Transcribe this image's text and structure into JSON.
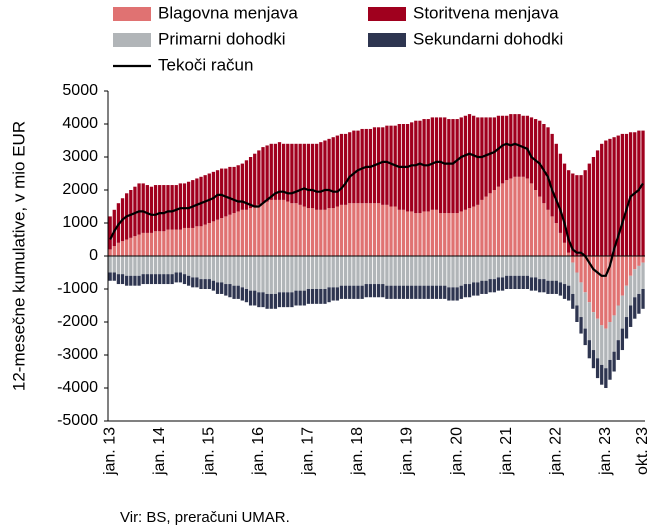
{
  "chart_data": {
    "type": "bar",
    "stacked": true,
    "y_label": "12-mesečne kumulative, v mio EUR",
    "source": "Vir: BS, preračuni UMAR.",
    "ylim": [
      -5000,
      5000
    ],
    "yticks": [
      5000,
      4000,
      3000,
      2000,
      1000,
      0,
      -1000,
      -2000,
      -3000,
      -4000,
      -5000
    ],
    "categories": [
      "jan. 13",
      null,
      null,
      null,
      null,
      null,
      null,
      null,
      null,
      null,
      null,
      null,
      "jan. 14",
      null,
      null,
      null,
      null,
      null,
      null,
      null,
      null,
      null,
      null,
      null,
      "jan. 15",
      null,
      null,
      null,
      null,
      null,
      null,
      null,
      null,
      null,
      null,
      null,
      "jan. 16",
      null,
      null,
      null,
      null,
      null,
      null,
      null,
      null,
      null,
      null,
      null,
      "jan. 17",
      null,
      null,
      null,
      null,
      null,
      null,
      null,
      null,
      null,
      null,
      null,
      "jan. 18",
      null,
      null,
      null,
      null,
      null,
      null,
      null,
      null,
      null,
      null,
      null,
      "jan. 19",
      null,
      null,
      null,
      null,
      null,
      null,
      null,
      null,
      null,
      null,
      null,
      "jan. 20",
      null,
      null,
      null,
      null,
      null,
      null,
      null,
      null,
      null,
      null,
      null,
      "jan. 21",
      null,
      null,
      null,
      null,
      null,
      null,
      null,
      null,
      null,
      null,
      null,
      "jan. 22",
      null,
      null,
      null,
      null,
      null,
      null,
      null,
      null,
      null,
      null,
      null,
      "jan. 23",
      null,
      null,
      null,
      null,
      null,
      null,
      null,
      null,
      "okt. 23"
    ],
    "series": [
      {
        "name": "Blagovna menjava",
        "color": "#e07272",
        "values": [
          200,
          300,
          400,
          450,
          500,
          550,
          600,
          650,
          700,
          700,
          700,
          750,
          750,
          750,
          800,
          800,
          800,
          800,
          850,
          850,
          850,
          900,
          900,
          950,
          1000,
          1050,
          1100,
          1150,
          1200,
          1250,
          1300,
          1350,
          1400,
          1400,
          1450,
          1500,
          1550,
          1600,
          1650,
          1700,
          1700,
          1700,
          1700,
          1650,
          1600,
          1600,
          1550,
          1500,
          1450,
          1450,
          1400,
          1400,
          1400,
          1450,
          1450,
          1500,
          1550,
          1550,
          1600,
          1600,
          1600,
          1600,
          1600,
          1600,
          1600,
          1600,
          1550,
          1550,
          1500,
          1500,
          1400,
          1400,
          1350,
          1350,
          1300,
          1300,
          1350,
          1350,
          1400,
          1400,
          1300,
          1300,
          1300,
          1300,
          1300,
          1350,
          1400,
          1450,
          1500,
          1550,
          1700,
          1800,
          1900,
          2000,
          2100,
          2200,
          2300,
          2350,
          2400,
          2400,
          2400,
          2350,
          2200,
          2000,
          1800,
          1600,
          1400,
          1200,
          1000,
          700,
          400,
          100,
          -200,
          -500,
          -800,
          -1100,
          -1400,
          -1700,
          -1900,
          -2100,
          -2200,
          -2000,
          -1800,
          -1500,
          -1200,
          -900,
          -600,
          -400,
          -300,
          -200
        ]
      },
      {
        "name": "Storitvena menjava",
        "color": "#a0001e",
        "values": [
          1000,
          1100,
          1200,
          1300,
          1400,
          1450,
          1500,
          1550,
          1500,
          1450,
          1400,
          1400,
          1400,
          1400,
          1350,
          1350,
          1350,
          1400,
          1350,
          1400,
          1450,
          1450,
          1500,
          1500,
          1500,
          1500,
          1500,
          1500,
          1450,
          1450,
          1400,
          1400,
          1400,
          1500,
          1550,
          1600,
          1650,
          1700,
          1700,
          1700,
          1700,
          1750,
          1700,
          1750,
          1800,
          1800,
          1850,
          1900,
          1950,
          1950,
          2000,
          2050,
          2100,
          2100,
          2150,
          2150,
          2150,
          2150,
          2150,
          2200,
          2200,
          2250,
          2250,
          2250,
          2300,
          2300,
          2350,
          2400,
          2450,
          2450,
          2600,
          2600,
          2650,
          2700,
          2800,
          2800,
          2800,
          2800,
          2800,
          2800,
          2900,
          2900,
          2850,
          2850,
          2850,
          2850,
          2850,
          2850,
          2750,
          2650,
          2500,
          2400,
          2300,
          2200,
          2150,
          2050,
          1950,
          1950,
          1900,
          1900,
          1850,
          1900,
          2000,
          2150,
          2300,
          2400,
          2500,
          2500,
          2400,
          2400,
          2400,
          2500,
          2500,
          2450,
          2450,
          2600,
          2800,
          3000,
          3200,
          3400,
          3500,
          3550,
          3600,
          3650,
          3700,
          3700,
          3750,
          3750,
          3800,
          3800
        ]
      },
      {
        "name": "Primarni dohodki",
        "color": "#b1b5b8",
        "values": [
          -500,
          -500,
          -550,
          -550,
          -600,
          -600,
          -600,
          -600,
          -550,
          -550,
          -550,
          -550,
          -550,
          -550,
          -550,
          -550,
          -500,
          -500,
          -550,
          -600,
          -650,
          -650,
          -700,
          -700,
          -700,
          -750,
          -800,
          -800,
          -850,
          -850,
          -900,
          -900,
          -950,
          -1000,
          -1050,
          -1050,
          -1100,
          -1100,
          -1150,
          -1150,
          -1150,
          -1100,
          -1100,
          -1100,
          -1100,
          -1050,
          -1050,
          -1050,
          -1000,
          -1000,
          -1000,
          -1000,
          -1000,
          -950,
          -950,
          -950,
          -900,
          -900,
          -900,
          -900,
          -900,
          -900,
          -850,
          -850,
          -850,
          -850,
          -850,
          -900,
          -900,
          -900,
          -900,
          -900,
          -900,
          -900,
          -900,
          -900,
          -900,
          -900,
          -900,
          -900,
          -900,
          -900,
          -950,
          -950,
          -950,
          -900,
          -850,
          -850,
          -800,
          -800,
          -750,
          -750,
          -700,
          -700,
          -650,
          -650,
          -600,
          -600,
          -600,
          -600,
          -600,
          -600,
          -650,
          -650,
          -700,
          -700,
          -750,
          -750,
          -750,
          -800,
          -850,
          -900,
          -950,
          -1000,
          -1050,
          -1100,
          -1150,
          -1150,
          -1200,
          -1200,
          -1200,
          -1150,
          -1100,
          -1050,
          -1000,
          -950,
          -900,
          -850,
          -850,
          -800
        ]
      },
      {
        "name": "Sekundarni dohodki",
        "color": "#2e3550",
        "values": [
          -250,
          -250,
          -300,
          -300,
          -300,
          -300,
          -300,
          -300,
          -300,
          -300,
          -300,
          -300,
          -300,
          -300,
          -300,
          -300,
          -300,
          -300,
          -300,
          -300,
          -300,
          -300,
          -300,
          -300,
          -300,
          -300,
          -350,
          -350,
          -350,
          -400,
          -400,
          -400,
          -400,
          -400,
          -450,
          -450,
          -450,
          -450,
          -450,
          -450,
          -450,
          -450,
          -450,
          -450,
          -450,
          -450,
          -450,
          -450,
          -450,
          -450,
          -450,
          -450,
          -450,
          -450,
          -400,
          -400,
          -400,
          -400,
          -400,
          -400,
          -400,
          -400,
          -400,
          -400,
          -400,
          -400,
          -400,
          -400,
          -400,
          -400,
          -400,
          -400,
          -400,
          -400,
          -400,
          -400,
          -400,
          -400,
          -400,
          -400,
          -400,
          -400,
          -400,
          -400,
          -400,
          -400,
          -400,
          -400,
          -400,
          -400,
          -400,
          -400,
          -400,
          -400,
          -400,
          -400,
          -400,
          -400,
          -400,
          -400,
          -400,
          -400,
          -400,
          -400,
          -400,
          -400,
          -400,
          -400,
          -400,
          -400,
          -450,
          -450,
          -450,
          -500,
          -500,
          -500,
          -550,
          -550,
          -600,
          -600,
          -600,
          -600,
          -600,
          -600,
          -650,
          -650,
          -650,
          -650,
          -600,
          -600
        ]
      },
      {
        "name": "Tekoči račun",
        "color": "#000000",
        "type": "line",
        "values": [
          500,
          750,
          950,
          1100,
          1200,
          1250,
          1300,
          1350,
          1350,
          1300,
          1250,
          1250,
          1300,
          1300,
          1350,
          1350,
          1400,
          1450,
          1450,
          1450,
          1500,
          1550,
          1600,
          1650,
          1700,
          1750,
          1850,
          1850,
          1800,
          1750,
          1700,
          1650,
          1650,
          1600,
          1550,
          1500,
          1500,
          1600,
          1700,
          1800,
          1900,
          1950,
          1950,
          1900,
          1900,
          1950,
          2000,
          2050,
          2000,
          2000,
          1950,
          1950,
          2000,
          2000,
          1950,
          1950,
          2050,
          2200,
          2400,
          2500,
          2600,
          2650,
          2700,
          2700,
          2750,
          2800,
          2850,
          2850,
          2800,
          2750,
          2700,
          2700,
          2700,
          2750,
          2750,
          2800,
          2750,
          2750,
          2800,
          2850,
          2850,
          2800,
          2800,
          2800,
          2900,
          3000,
          3050,
          3100,
          3050,
          3000,
          3000,
          3050,
          3100,
          3150,
          3250,
          3350,
          3400,
          3350,
          3400,
          3350,
          3300,
          3250,
          3000,
          2900,
          2800,
          2600,
          2400,
          2000,
          1700,
          1400,
          1000,
          500,
          200,
          100,
          100,
          0,
          -200,
          -400,
          -500,
          -600,
          -600,
          -300,
          200,
          600,
          1000,
          1400,
          1800,
          1900,
          2000,
          2200
        ]
      }
    ]
  }
}
